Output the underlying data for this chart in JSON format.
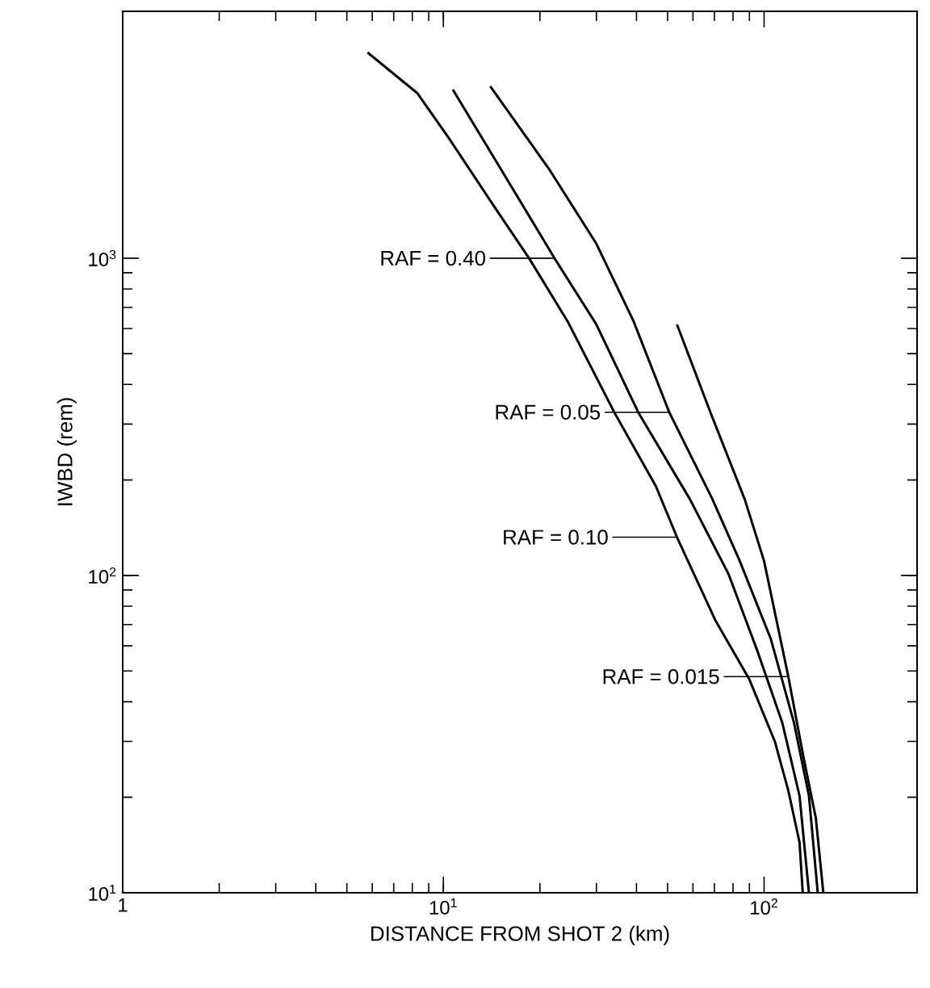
{
  "chart_data": {
    "type": "line",
    "xlabel": "DISTANCE FROM SHOT 2 (km)",
    "ylabel": "IWBD (rem)",
    "log": "xy",
    "xlim": [
      1,
      300
    ],
    "ylim": [
      10,
      6000
    ],
    "xticks": [
      1,
      {
        "value": 10,
        "label": "10$^{1}$"
      },
      {
        "value": 100,
        "label": "10$^{2}$"
      }
    ],
    "yticks": [
      {
        "value": 10,
        "label": "10$^{1}$"
      },
      {
        "value": 100,
        "label": "10$^{2}$"
      },
      {
        "value": 1000,
        "label": "10$^{3}$"
      }
    ],
    "grid": false,
    "legend": "center",
    "marker": "none",
    "line_style": "solid",
    "series": [
      {
        "name": "RAF = 0.10",
        "color": "#000000",
        "x": [
          5.8,
          8.3,
          10.4,
          14.5,
          18.5,
          24.4,
          34.1,
          46,
          53.5,
          70.6,
          90,
          108,
          119,
          129,
          132
        ],
        "values": [
          4450,
          3310,
          2390,
          1440,
          1000,
          632,
          327,
          191,
          132,
          72,
          47,
          30,
          21,
          14.4,
          10
        ]
      },
      {
        "name": "RAF = 0.40",
        "color": "#000000",
        "x": [
          10.7,
          15.2,
          22.2,
          30,
          40.5,
          58.7,
          77.5,
          95.5,
          114,
          129,
          138
        ],
        "values": [
          3400,
          1890,
          1000,
          618,
          327,
          174,
          101,
          57.5,
          34.3,
          20.2,
          10
        ]
      },
      {
        "name": "RAF = 0.05",
        "color": "#000000",
        "x": [
          14,
          21.5,
          30,
          39.2,
          50.6,
          69,
          84,
          105,
          124,
          138,
          147
        ],
        "values": [
          3480,
          1890,
          1110,
          632,
          327,
          174,
          111,
          63,
          34.3,
          20.2,
          10
        ]
      },
      {
        "name": "RAF = 0.015",
        "color": "#000000",
        "x": [
          53.5,
          68,
          87,
          100,
          119,
          132,
          145,
          153
        ],
        "values": [
          618,
          327,
          174,
          111,
          48,
          27.5,
          17.2,
          10
        ]
      }
    ]
  }
}
